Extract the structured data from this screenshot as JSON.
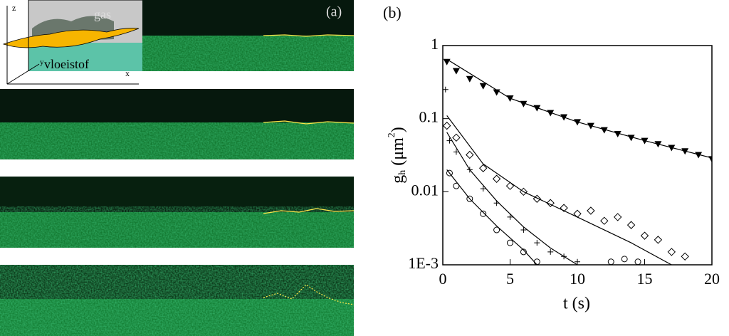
{
  "panel_a": {
    "label": "(a)",
    "gas": "gas",
    "liquid": "vloeistof",
    "axis_z": "z",
    "axis_x": "x",
    "axis_y": "y"
  },
  "chart_data": {
    "type": "scatter",
    "panel_label": "(b)",
    "xlabel": "t (s)",
    "ylabel": {
      "symbol": "g",
      "subscript": "h",
      "unit": "(μm",
      "superscript": "2",
      "close": ")"
    },
    "xlim": [
      0,
      20
    ],
    "ylim": [
      0.001,
      1
    ],
    "log_y": true,
    "xticks": [
      0,
      5,
      10,
      15,
      20
    ],
    "yticks": [
      {
        "value": 0.001,
        "label": "1E-3"
      },
      0.01,
      0.1,
      1
    ],
    "series": [
      {
        "marker": "triangle",
        "color": "#000000",
        "x": [
          0.3,
          1,
          2,
          3,
          4,
          5,
          6,
          7,
          8,
          9,
          10,
          11,
          12,
          13,
          14,
          15,
          16,
          17,
          18,
          19,
          20
        ],
        "values": [
          0.6,
          0.45,
          0.35,
          0.28,
          0.23,
          0.19,
          0.16,
          0.14,
          0.12,
          0.105,
          0.09,
          0.08,
          0.07,
          0.062,
          0.055,
          0.05,
          0.045,
          0.04,
          0.036,
          0.032,
          0.028
        ]
      },
      {
        "marker": "diamond",
        "color": "#000000",
        "x": [
          0.3,
          1,
          2,
          3,
          4,
          5,
          6,
          7,
          8,
          9,
          10,
          11,
          12,
          13,
          14,
          15,
          16,
          17,
          18
        ],
        "values": [
          0.08,
          0.055,
          0.032,
          0.021,
          0.015,
          0.012,
          0.01,
          0.008,
          0.007,
          0.006,
          0.005,
          0.0055,
          0.004,
          0.0045,
          0.0035,
          0.0025,
          0.0022,
          0.0015,
          0.0013
        ]
      },
      {
        "marker": "plus",
        "color": "#000000",
        "x": [
          0.2,
          0.5,
          1,
          2,
          3,
          4,
          5,
          6,
          7,
          8,
          9,
          10
        ],
        "values": [
          0.25,
          0.05,
          0.035,
          0.02,
          0.011,
          0.007,
          0.0045,
          0.003,
          0.002,
          0.0015,
          0.0013,
          0.0011
        ]
      },
      {
        "marker": "circle",
        "color": "#000000",
        "x": [
          0.5,
          1,
          2,
          3,
          4,
          5,
          6,
          7,
          12.5,
          13.5,
          14.5
        ],
        "values": [
          0.018,
          0.012,
          0.008,
          0.005,
          0.003,
          0.002,
          0.0015,
          0.0011,
          0.0011,
          0.0012,
          0.0011
        ]
      }
    ],
    "fits": [
      {
        "x": [
          0.3,
          5,
          10,
          15,
          20
        ],
        "values": [
          0.65,
          0.19,
          0.09,
          0.05,
          0.029
        ]
      },
      {
        "x": [
          0.3,
          3,
          6,
          10,
          14,
          17
        ],
        "values": [
          0.11,
          0.024,
          0.01,
          0.0045,
          0.002,
          0.001
        ]
      },
      {
        "x": [
          0.3,
          2,
          4,
          6,
          8,
          10
        ],
        "values": [
          0.065,
          0.02,
          0.0075,
          0.0033,
          0.0017,
          0.001
        ]
      },
      {
        "x": [
          0.3,
          2,
          4,
          6,
          7
        ],
        "values": [
          0.02,
          0.008,
          0.0034,
          0.0016,
          0.001
        ]
      }
    ]
  }
}
